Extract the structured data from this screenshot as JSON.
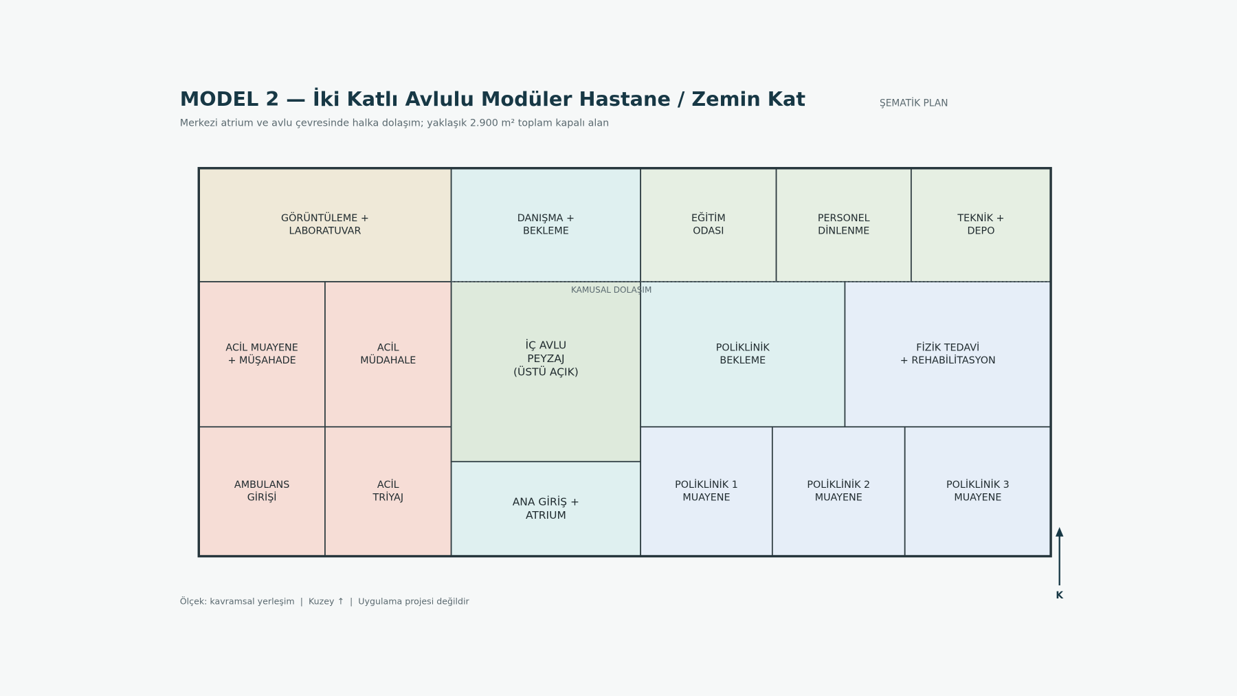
{
  "header": {
    "title": "MODEL 2 — İki Katlı Avlulu Modüler Hastane / Zemin Kat",
    "subtitle": "Merkezi atrium ve avlu çevresinde halka dolaşım; yaklaşık 2.900 m² toplam kapalı alan",
    "tag": "ŞEMATİK PLAN"
  },
  "rooms": [
    {
      "lines": [
        "GÖRÜNTÜLEME +",
        "LABORATUVAR"
      ]
    },
    {
      "lines": [
        "DANIŞMA +",
        "BEKLEME"
      ]
    },
    {
      "lines": [
        "EĞİTİM",
        "ODASI"
      ]
    },
    {
      "lines": [
        "PERSONEL",
        "DİNLENME"
      ]
    },
    {
      "lines": [
        "TEKNİK +",
        "DEPO"
      ]
    },
    {
      "lines": [
        "ACİL MUAYENE",
        "+ MÜŞAHADE"
      ]
    },
    {
      "lines": [
        "ACİL",
        "MÜDAHALE"
      ]
    },
    {
      "lines": [
        "AMBULANS",
        "GİRİŞİ"
      ]
    },
    {
      "lines": [
        "ACİL",
        "TRİYAJ"
      ]
    },
    {
      "lines": [
        "İÇ AVLU",
        "PEYZAJ",
        "(ÜSTÜ AÇIK)"
      ]
    },
    {
      "lines": [
        "ANA GİRİŞ +",
        "ATRIUM"
      ]
    },
    {
      "lines": [
        "POLİKLİNİK",
        "BEKLEME"
      ]
    },
    {
      "lines": [
        "FİZİK TEDAVİ",
        "+ REHABİLİTASYON"
      ]
    },
    {
      "lines": [
        "POLİKLİNİK 1",
        "MUAYENE"
      ]
    },
    {
      "lines": [
        "POLİKLİNİK 2",
        "MUAYENE"
      ]
    },
    {
      "lines": [
        "POLİKLİNİK 3",
        "MUAYENE"
      ]
    }
  ],
  "circulation_label": "KAMUSAL DOLAŞIM",
  "north_label": "K",
  "footer": "Ölçek: kavramsal yerleşim  |  Kuzey ↑  |  Uygulama projesi değildir"
}
